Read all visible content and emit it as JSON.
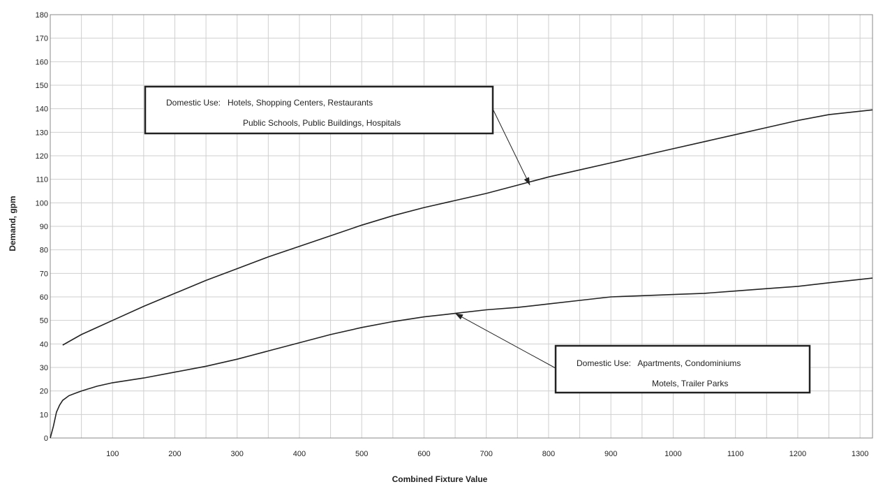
{
  "chart_data": {
    "type": "line",
    "title": "",
    "xlabel": "Combined Fixture Value",
    "ylabel": "Demand, gpm",
    "xlim": [
      0,
      1320
    ],
    "ylim": [
      0,
      180
    ],
    "x_ticks": [
      100,
      200,
      300,
      400,
      500,
      600,
      700,
      800,
      900,
      1000,
      1100,
      1200,
      1300
    ],
    "y_ticks": [
      0,
      10,
      20,
      30,
      40,
      50,
      60,
      70,
      80,
      90,
      100,
      110,
      120,
      130,
      140,
      150,
      160,
      170,
      180
    ],
    "grid": true,
    "legend": "none",
    "series": [
      {
        "x": [
          20,
          50,
          100,
          150,
          200,
          250,
          300,
          350,
          400,
          450,
          500,
          550,
          600,
          650,
          700,
          750,
          800,
          850,
          900,
          950,
          1000,
          1050,
          1100,
          1150,
          1200,
          1250,
          1320
        ],
        "y": [
          39.5,
          44,
          50,
          56,
          61.5,
          67,
          72,
          77,
          81.5,
          86,
          90.5,
          94.5,
          98,
          101,
          104,
          107.5,
          111,
          114,
          117,
          120,
          123,
          126,
          129,
          132,
          135,
          137.5,
          139.5
        ]
      },
      {
        "x": [
          0,
          5,
          10,
          15,
          20,
          30,
          40,
          50,
          75,
          100,
          150,
          200,
          250,
          300,
          350,
          400,
          450,
          500,
          550,
          600,
          650,
          700,
          750,
          800,
          850,
          900,
          950,
          1000,
          1050,
          1100,
          1150,
          1200,
          1250,
          1320
        ],
        "y": [
          0,
          5,
          11,
          14,
          16,
          18,
          19,
          20,
          22,
          23.5,
          25.5,
          28,
          30.5,
          33.5,
          37,
          40.5,
          44,
          47,
          49.5,
          51.5,
          53,
          54.5,
          55.5,
          57,
          58.5,
          60,
          60.5,
          61,
          61.5,
          62.5,
          63.5,
          64.5,
          66,
          68
        ]
      }
    ],
    "annotations": [
      {
        "lines": [
          "Domestic Use:   Hotels, Shopping Centers, Restaurants",
          "Public Schools, Public Buildings, Hospitals"
        ],
        "arrow_to": [
          770,
          107.5
        ]
      },
      {
        "lines": [
          "Domestic Use:   Apartments, Condominiums",
          "Motels, Trailer Parks"
        ],
        "arrow_to": [
          650,
          53
        ]
      }
    ]
  }
}
